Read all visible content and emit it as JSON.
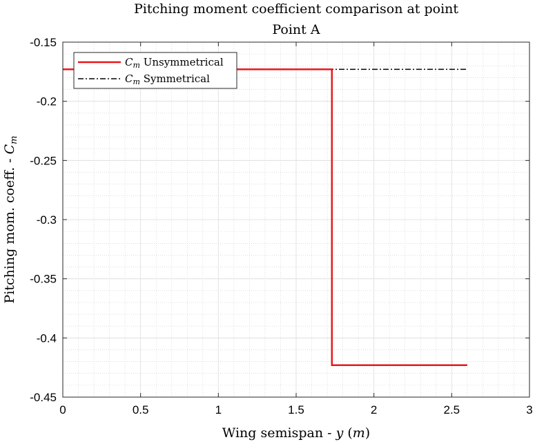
{
  "chart_data": {
    "type": "line",
    "title": "Pitching moment coefficient comparison at point",
    "subtitle": "Point A",
    "xlabel": "Wing semispan - y (m)",
    "ylabel": "Pitching mom. coeff. - Cm",
    "xlim": [
      0,
      3
    ],
    "ylim": [
      -0.45,
      -0.15
    ],
    "xticks": [
      0,
      0.5,
      1,
      1.5,
      2,
      2.5,
      3
    ],
    "xtick_labels": [
      "0",
      "0.5",
      "1",
      "1.5",
      "2",
      "2.5",
      "3"
    ],
    "yticks": [
      -0.45,
      -0.4,
      -0.35,
      -0.3,
      -0.25,
      -0.2,
      -0.15
    ],
    "ytick_labels": [
      "-0.45",
      "-0.4",
      "-0.35",
      "-0.3",
      "-0.25",
      "-0.2",
      "-0.15"
    ],
    "grid": true,
    "minor_grid": true,
    "legend_position": "top-left",
    "series": [
      {
        "name": "Cm Unsymmetrical",
        "color": "#e8161b",
        "style": "solid",
        "x": [
          0,
          1.73,
          1.73,
          2.6
        ],
        "y": [
          -0.173,
          -0.173,
          -0.423,
          -0.423
        ]
      },
      {
        "name": "Cm Symmetrical",
        "color": "#000000",
        "style": "dashdot",
        "x": [
          0,
          2.6
        ],
        "y": [
          -0.173,
          -0.173
        ]
      }
    ]
  }
}
